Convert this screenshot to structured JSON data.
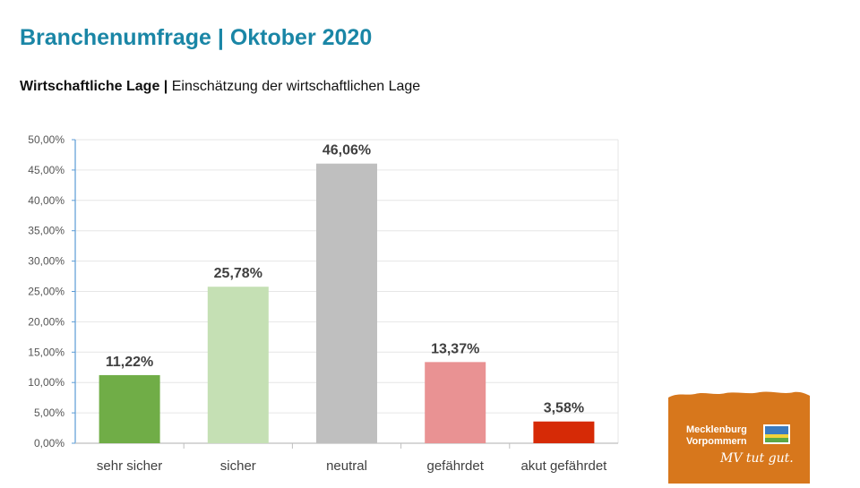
{
  "header": {
    "title": "Branchenumfrage | Oktober 2020",
    "subtitle_bold": "Wirtschaftliche Lage |",
    "subtitle_rest": " Einschätzung der wirtschaftlichen Lage"
  },
  "chart_data": {
    "type": "bar",
    "categories": [
      "sehr sicher",
      "sicher",
      "neutral",
      "gefährdet",
      "akut gefährdet"
    ],
    "values": [
      11.22,
      25.78,
      46.06,
      13.37,
      3.58
    ],
    "value_labels": [
      "11,22%",
      "25,78%",
      "46,06%",
      "13,37%",
      "3,58%"
    ],
    "colors": [
      "#70ad47",
      "#c5e0b4",
      "#bfbfbf",
      "#e99293",
      "#d62a06"
    ],
    "ylim": [
      0,
      50
    ],
    "yticks": [
      0,
      5,
      10,
      15,
      20,
      25,
      30,
      35,
      40,
      45,
      50
    ],
    "ytick_labels": [
      "0,00%",
      "5,00%",
      "10,00%",
      "15,00%",
      "20,00%",
      "25,00%",
      "30,00%",
      "35,00%",
      "40,00%",
      "45,00%",
      "50,00%"
    ],
    "grid": true,
    "axis_color": "#5b9bd5"
  },
  "logo": {
    "line1": "Mecklenburg",
    "line2": "Vorpommern",
    "slogan": "MV tut gut.",
    "color": "#d7771c"
  }
}
